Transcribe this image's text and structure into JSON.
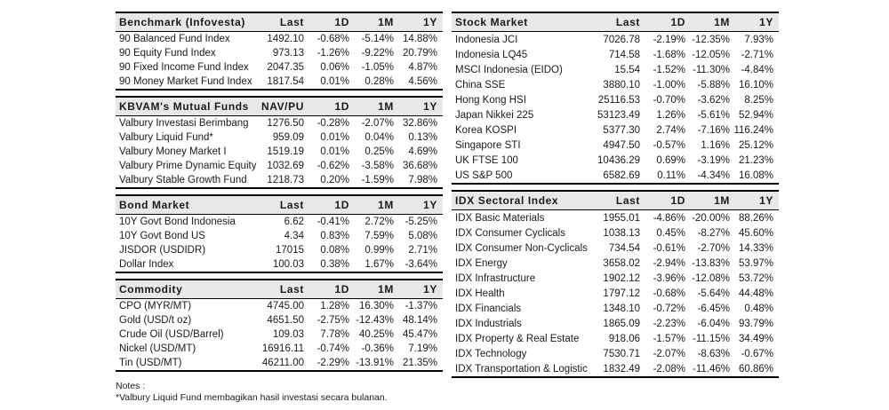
{
  "colors": {
    "header_bg": "#e8e8e8",
    "border": "#000000",
    "text": "#1a1a1a",
    "page_bg": "#ffffff"
  },
  "notes": {
    "label": "Notes :",
    "line1": "*Valbury Liquid Fund membagikan hasil investasi secara bulanan."
  },
  "tables": [
    {
      "name": "benchmark-infovesta",
      "headers": [
        "Benchmark (Infovesta)",
        "Last",
        "1D",
        "1M",
        "1Y"
      ],
      "rows": [
        [
          "90 Balanced Fund Index",
          "1492.10",
          "-0.68%",
          "-5.14%",
          "14.88%"
        ],
        [
          "90 Equity Fund Index",
          "973.13",
          "-1.26%",
          "-9.22%",
          "20.79%"
        ],
        [
          "90 Fixed Income Fund Index",
          "2047.35",
          "0.06%",
          "-1.05%",
          "4.87%"
        ],
        [
          "90 Money Market Fund Index",
          "1817.54",
          "0.01%",
          "0.28%",
          "4.56%"
        ]
      ]
    },
    {
      "name": "kbvam-mutual-funds",
      "headers": [
        "KBVAM's Mutual Funds",
        "NAV/PU",
        "1D",
        "1M",
        "1Y"
      ],
      "rows": [
        [
          "Valbury Investasi Berimbang",
          "1276.50",
          "-0.28%",
          "-2.07%",
          "32.86%"
        ],
        [
          "Valbury Liquid Fund*",
          "959.09",
          "0.01%",
          "0.04%",
          "0.13%"
        ],
        [
          "Valbury Money Market I",
          "1519.19",
          "0.01%",
          "0.25%",
          "4.69%"
        ],
        [
          "Valbury Prime Dynamic Equity",
          "1032.69",
          "-0.62%",
          "-3.58%",
          "36.68%"
        ],
        [
          "Valbury Stable Growth Fund",
          "1218.73",
          "0.20%",
          "-1.59%",
          "7.98%"
        ]
      ]
    },
    {
      "name": "bond-market",
      "headers": [
        "Bond Market",
        "Last",
        "1D",
        "1M",
        "1Y"
      ],
      "rows": [
        [
          "10Y Govt Bond Indonesia",
          "6.62",
          "-0.41%",
          "2.72%",
          "-5.25%"
        ],
        [
          "10Y Govt Bond US",
          "4.34",
          "0.83%",
          "7.59%",
          "5.08%"
        ],
        [
          "JISDOR (USDIDR)",
          "17015",
          "0.08%",
          "0.99%",
          "2.71%"
        ],
        [
          "Dollar Index",
          "100.03",
          "0.38%",
          "1.67%",
          "-3.64%"
        ]
      ]
    },
    {
      "name": "commodity",
      "headers": [
        "Commodity",
        "Last",
        "1D",
        "1M",
        "1Y"
      ],
      "rows": [
        [
          "CPO (MYR/MT)",
          "4745.00",
          "1.28%",
          "16.30%",
          "-1.37%"
        ],
        [
          "Gold (USD/t oz)",
          "4651.50",
          "-2.75%",
          "-12.43%",
          "48.14%"
        ],
        [
          "Crude Oil (USD/Barrel)",
          "109.03",
          "7.78%",
          "40.25%",
          "45.47%"
        ],
        [
          "Nickel (USD/MT)",
          "16916.11",
          "-0.74%",
          "-0.36%",
          "7.19%"
        ],
        [
          "Tin (USD/MT)",
          "46211.00",
          "-2.29%",
          "-13.91%",
          "21.35%"
        ]
      ]
    },
    {
      "name": "stock-market",
      "headers": [
        "Stock Market",
        "Last",
        "1D",
        "1M",
        "1Y"
      ],
      "rows": [
        [
          "Indonesia JCI",
          "7026.78",
          "-2.19%",
          "-12.35%",
          "7.93%"
        ],
        [
          "Indonesia LQ45",
          "714.58",
          "-1.68%",
          "-12.05%",
          "-2.71%"
        ],
        [
          "MSCI Indonesia (EIDO)",
          "15.54",
          "-1.52%",
          "-11.30%",
          "-4.84%"
        ],
        [
          "China SSE",
          "3880.10",
          "-1.00%",
          "-5.88%",
          "16.10%"
        ],
        [
          "Hong Kong HSI",
          "25116.53",
          "-0.70%",
          "-3.62%",
          "8.25%"
        ],
        [
          "Japan Nikkei 225",
          "53123.49",
          "1.26%",
          "-5.61%",
          "52.94%"
        ],
        [
          "Korea KOSPI",
          "5377.30",
          "2.74%",
          "-7.16%",
          "116.24%"
        ],
        [
          "Singapore STI",
          "4947.50",
          "-0.57%",
          "1.16%",
          "25.12%"
        ],
        [
          "UK FTSE 100",
          "10436.29",
          "0.69%",
          "-3.19%",
          "21.23%"
        ],
        [
          "US S&P 500",
          "6582.69",
          "0.11%",
          "-4.34%",
          "16.08%"
        ]
      ]
    },
    {
      "name": "idx-sectoral-index",
      "headers": [
        "IDX Sectoral Index",
        "Last",
        "1D",
        "1M",
        "1Y"
      ],
      "rows": [
        [
          "IDX Basic Materials",
          "1955.01",
          "-4.86%",
          "-20.00%",
          "88.26%"
        ],
        [
          "IDX Consumer Cyclicals",
          "1038.13",
          "0.45%",
          "-8.27%",
          "45.60%"
        ],
        [
          "IDX Consumer Non-Cyclicals",
          "734.54",
          "-0.61%",
          "-2.70%",
          "14.33%"
        ],
        [
          "IDX Energy",
          "3658.02",
          "-2.94%",
          "-13.83%",
          "53.97%"
        ],
        [
          "IDX Infrastructure",
          "1902.12",
          "-3.96%",
          "-12.08%",
          "53.72%"
        ],
        [
          "IDX Health",
          "1797.12",
          "-0.68%",
          "-5.64%",
          "44.48%"
        ],
        [
          "IDX Financials",
          "1348.10",
          "-0.72%",
          "-6.45%",
          "0.48%"
        ],
        [
          "IDX Industrials",
          "1865.09",
          "-2.23%",
          "-6.04%",
          "93.79%"
        ],
        [
          "IDX Property & Real Estate",
          "918.06",
          "-1.57%",
          "-11.15%",
          "34.49%"
        ],
        [
          "IDX Technology",
          "7530.71",
          "-2.07%",
          "-8.63%",
          "-0.67%"
        ],
        [
          "IDX Transportation & Logistic",
          "1832.49",
          "-2.08%",
          "-11.46%",
          "60.86%"
        ]
      ]
    }
  ]
}
